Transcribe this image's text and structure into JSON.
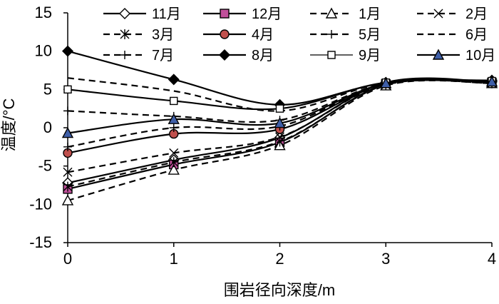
{
  "chart_data": {
    "type": "line",
    "title": "",
    "xlabel": "围岩径向深度/m",
    "ylabel": "温度/°C",
    "xlim": [
      0,
      4
    ],
    "ylim": [
      -15,
      15
    ],
    "xticks": [
      0,
      1,
      2,
      3,
      4
    ],
    "yticks": [
      -15,
      -10,
      -5,
      0,
      5,
      10,
      15
    ],
    "x": [
      0,
      1,
      2,
      3,
      4
    ],
    "grid": false,
    "legend_position": "top",
    "series": [
      {
        "name": "11月",
        "values": [
          -7.2,
          -4.2,
          -1.3,
          5.9,
          6.0
        ],
        "marker": "diamond-open",
        "dash": "solid"
      },
      {
        "name": "12月",
        "values": [
          -8.0,
          -4.8,
          -1.9,
          5.7,
          5.9
        ],
        "marker": "square-filled",
        "dash": "solid"
      },
      {
        "name": "1月",
        "values": [
          -9.5,
          -5.5,
          -2.3,
          5.5,
          5.8
        ],
        "marker": "triangle-open",
        "dash": "dash"
      },
      {
        "name": "2月",
        "values": [
          -5.8,
          -3.3,
          -1.2,
          5.8,
          5.9
        ],
        "marker": "x",
        "dash": "dash"
      },
      {
        "name": "3月",
        "values": [
          -7.7,
          -4.5,
          -1.8,
          5.6,
          5.8
        ],
        "marker": "star",
        "dash": "dash"
      },
      {
        "name": "4月",
        "values": [
          -3.3,
          -0.8,
          -0.2,
          5.8,
          6.0
        ],
        "marker": "circle-filled",
        "dash": "solid"
      },
      {
        "name": "5月",
        "values": [
          -2.5,
          0.0,
          0.2,
          5.8,
          6.0
        ],
        "marker": "plus",
        "dash": "dash"
      },
      {
        "name": "6月",
        "values": [
          6.5,
          4.8,
          2.2,
          5.9,
          6.1
        ],
        "marker": "none",
        "dash": "dash"
      },
      {
        "name": "7月",
        "values": [
          2.2,
          1.5,
          1.0,
          5.8,
          6.0
        ],
        "marker": "plus",
        "dash": "dash"
      },
      {
        "name": "8月",
        "values": [
          10.0,
          6.3,
          3.0,
          5.9,
          6.2
        ],
        "marker": "diamond-filled",
        "dash": "solid"
      },
      {
        "name": "9月",
        "values": [
          5.0,
          3.5,
          2.5,
          5.9,
          6.1
        ],
        "marker": "square-open",
        "dash": "solid"
      },
      {
        "name": "10月",
        "values": [
          -0.7,
          1.1,
          0.6,
          5.8,
          6.0
        ],
        "marker": "triangle-filled",
        "dash": "solid"
      }
    ]
  },
  "colors": {
    "line": "#000000",
    "marker_12": "#c0509a",
    "marker_4": "#c0504d",
    "marker_10": "#3f5fa8"
  }
}
